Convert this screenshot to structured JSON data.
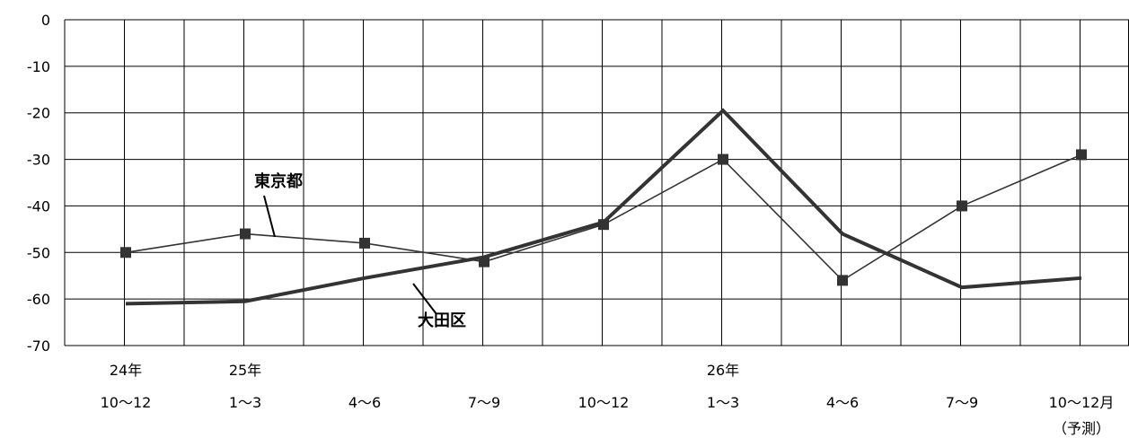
{
  "chart_data": {
    "type": "line",
    "title": "",
    "xlabel": "",
    "ylabel": "",
    "ylim": [
      -70,
      0
    ],
    "yticks": [
      0,
      -10,
      -20,
      -30,
      -40,
      -50,
      -60,
      -70
    ],
    "ytick_labels": [
      "0",
      "-10",
      "-20",
      "-30",
      "-40",
      "-50",
      "-60",
      "-70"
    ],
    "grid": true,
    "categories": [
      {
        "top": "24年",
        "bottom": "10〜12",
        "note": ""
      },
      {
        "top": "25年",
        "bottom": "1〜3",
        "note": ""
      },
      {
        "top": "",
        "bottom": "4〜6",
        "note": ""
      },
      {
        "top": "",
        "bottom": "7〜9",
        "note": ""
      },
      {
        "top": "",
        "bottom": "10〜12",
        "note": ""
      },
      {
        "top": "26年",
        "bottom": "1〜3",
        "note": ""
      },
      {
        "top": "",
        "bottom": "4〜6",
        "note": ""
      },
      {
        "top": "",
        "bottom": "7〜9",
        "note": ""
      },
      {
        "top": "",
        "bottom": "10〜12月",
        "note": "（予測）"
      }
    ],
    "series": [
      {
        "name": "東京都",
        "values": [
          -50,
          -46,
          -48,
          -52,
          -44,
          -30,
          -56,
          -40,
          -29
        ],
        "color": "#333333",
        "marker": "square",
        "label_index": 1
      },
      {
        "name": "大田区",
        "values": [
          -61,
          -60.5,
          -55.5,
          -51,
          -43.5,
          -19.5,
          -46,
          -57.5,
          -55.5
        ],
        "color": "#333333",
        "marker": "none",
        "label_index": 2
      }
    ]
  }
}
